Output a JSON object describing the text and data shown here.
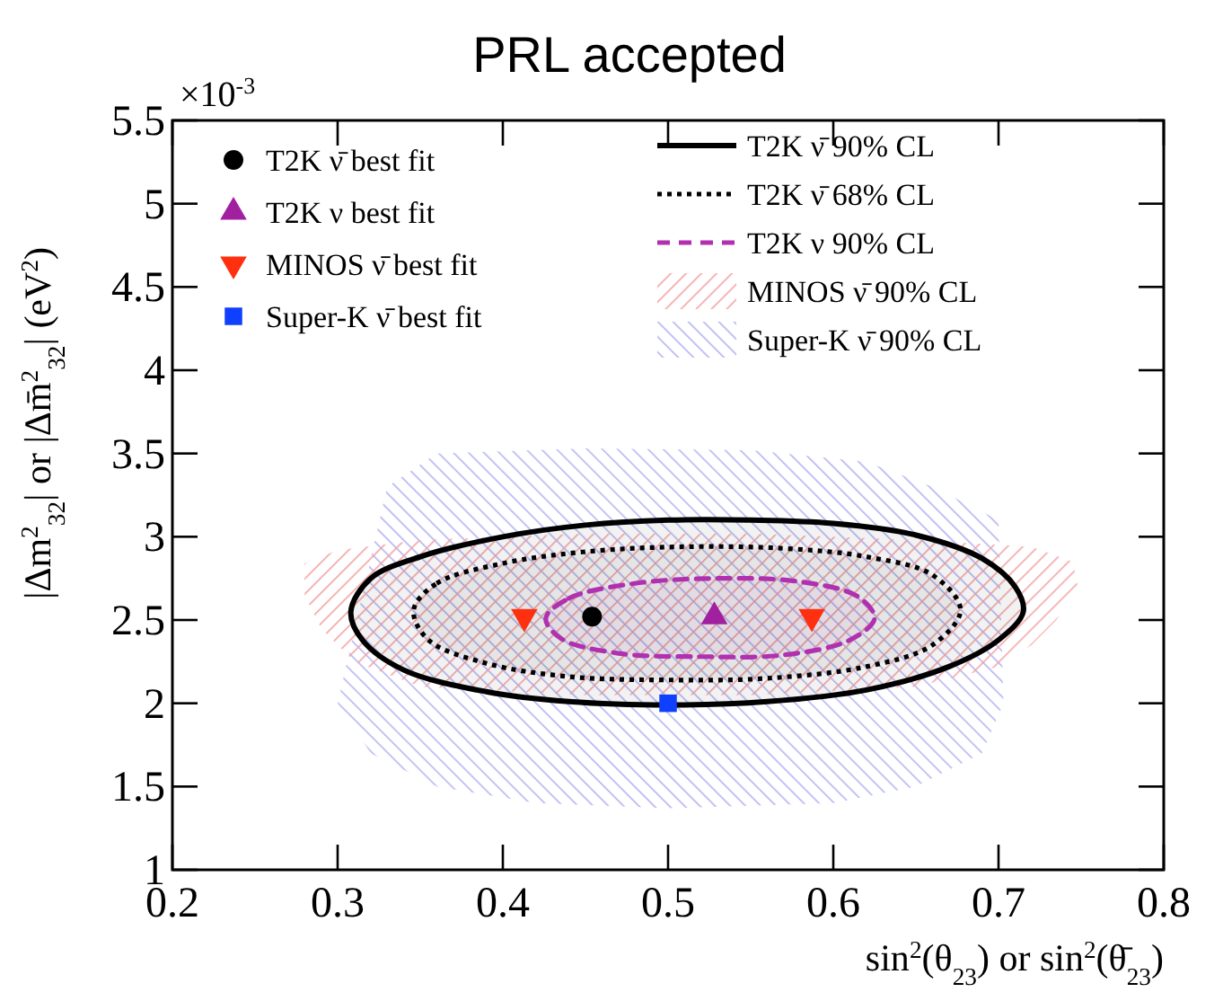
{
  "chart_data": {
    "type": "scatter",
    "title": "PRL accepted",
    "xlabel": "sin$^{2}$(θ$_{23}$) or sin$^{2}$(θ̄$_{23}$)",
    "ylabel": "|Δm$^{2}$$_{32}$| or |Δm̄$^{2}$$_{32}$| (eV$^{2}$)",
    "annotations": [
      "×10$^{-3}$"
    ],
    "xlim": [
      0.2,
      0.8
    ],
    "ylim": [
      1,
      5.5
    ],
    "xticks": [
      0.2,
      0.3,
      0.4,
      0.5,
      0.6,
      0.7,
      0.8
    ],
    "yticks": [
      1,
      1.5,
      2,
      2.5,
      3,
      3.5,
      4,
      4.5,
      5,
      5.5
    ],
    "grid": false,
    "legend": "top",
    "series": [
      {
        "name": "T2K ν̄ best fit",
        "type": "scatter",
        "marker": "circle",
        "color": "#000000",
        "x": [
          0.454
        ],
        "values": [
          2.52
        ]
      },
      {
        "name": "T2K ν best fit",
        "type": "scatter",
        "marker": "triangle",
        "color": "#a020a0",
        "x": [
          0.528
        ],
        "values": [
          2.52
        ]
      },
      {
        "name": "MINOS ν̄ best fit",
        "type": "scatter",
        "marker": "triangle-down",
        "color": "#ff3010",
        "x": [
          0.413,
          0.587
        ],
        "values": [
          2.52,
          2.52
        ]
      },
      {
        "name": "Super-K ν̄ best fit",
        "type": "scatter",
        "marker": "square",
        "color": "#1040ff",
        "x": [
          0.5
        ],
        "values": [
          2.0
        ]
      },
      {
        "name": "T2K ν̄ 90% CL",
        "type": "area",
        "line_style": "solid",
        "color": "#000000",
        "x": [
          0.308,
          0.32,
          0.35,
          0.4,
          0.45,
          0.5,
          0.55,
          0.6,
          0.65,
          0.69,
          0.71,
          0.715,
          0.7,
          0.67,
          0.62,
          0.56,
          0.5,
          0.44,
          0.39,
          0.34,
          0.315
        ],
        "values": [
          2.55,
          2.75,
          2.88,
          3.0,
          3.07,
          3.1,
          3.1,
          3.08,
          3.01,
          2.87,
          2.7,
          2.55,
          2.38,
          2.22,
          2.08,
          2.01,
          1.99,
          2.01,
          2.07,
          2.2,
          2.38
        ]
      },
      {
        "name": "T2K ν̄ 68% CL",
        "type": "area",
        "line_style": "dotted",
        "color": "#000000",
        "x": [
          0.346,
          0.36,
          0.4,
          0.45,
          0.51,
          0.57,
          0.62,
          0.66,
          0.677,
          0.66,
          0.62,
          0.56,
          0.5,
          0.44,
          0.39,
          0.355
        ],
        "values": [
          2.56,
          2.72,
          2.84,
          2.91,
          2.94,
          2.93,
          2.88,
          2.77,
          2.56,
          2.35,
          2.22,
          2.15,
          2.14,
          2.16,
          2.24,
          2.38
        ]
      },
      {
        "name": "T2K ν 90% CL",
        "type": "area",
        "line_style": "dashed",
        "color": "#b030b0",
        "x": [
          0.426,
          0.44,
          0.48,
          0.53,
          0.58,
          0.615,
          0.625,
          0.61,
          0.57,
          0.52,
          0.47,
          0.435
        ],
        "values": [
          2.51,
          2.63,
          2.72,
          2.75,
          2.73,
          2.64,
          2.51,
          2.38,
          2.29,
          2.28,
          2.3,
          2.39
        ]
      },
      {
        "name": "MINOS ν̄ 90% CL",
        "type": "area",
        "color": "#f4a4a4",
        "x": [
          0.28,
          0.3,
          0.35,
          0.45,
          0.55,
          0.65,
          0.72,
          0.745,
          0.748,
          0.735,
          0.72,
          0.7,
          0.65,
          0.55,
          0.45,
          0.35,
          0.31,
          0.29,
          0.28,
          0.28
        ],
        "values": [
          2.84,
          2.92,
          2.98,
          3.02,
          3.02,
          2.98,
          2.94,
          2.85,
          2.7,
          2.5,
          2.35,
          2.22,
          2.1,
          2.05,
          2.05,
          2.1,
          2.25,
          2.45,
          2.65,
          2.84
        ]
      },
      {
        "name": "Super-K ν̄ 90% CL",
        "type": "area",
        "color": "#b4b4f4",
        "x": [
          0.36,
          0.45,
          0.55,
          0.62,
          0.66,
          0.7,
          0.703,
          0.69,
          0.65,
          0.6,
          0.5,
          0.42,
          0.36,
          0.32,
          0.3,
          0.33,
          0.36
        ],
        "values": [
          3.5,
          3.53,
          3.52,
          3.45,
          3.3,
          3.1,
          2.0,
          1.7,
          1.5,
          1.4,
          1.37,
          1.4,
          1.5,
          1.7,
          2.0,
          3.3,
          3.5
        ]
      }
    ]
  }
}
